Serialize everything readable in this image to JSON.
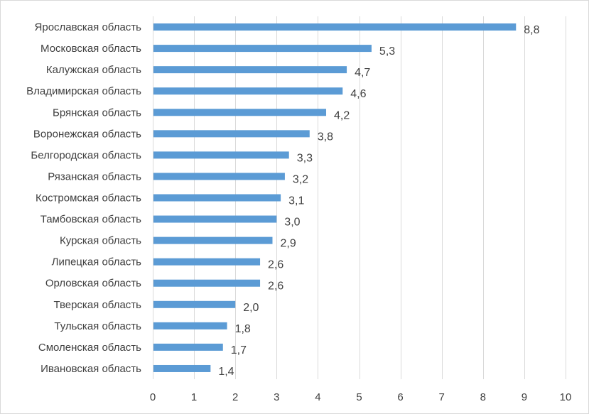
{
  "chart_data": {
    "type": "bar",
    "orientation": "horizontal",
    "categories": [
      "Ярославская область",
      "Московская область",
      "Калужская область",
      "Владимирская область",
      "Брянская область",
      "Воронежская область",
      "Белгородская область",
      "Рязанская область",
      "Костромская область",
      "Тамбовская область",
      "Курская область",
      "Липецкая область",
      "Орловская область",
      "Тверская область",
      "Тульская область",
      "Смоленская область",
      "Ивановская область"
    ],
    "values": [
      8.8,
      5.3,
      4.7,
      4.6,
      4.2,
      3.8,
      3.3,
      3.2,
      3.1,
      3.0,
      2.9,
      2.6,
      2.6,
      2.0,
      1.8,
      1.7,
      1.4
    ],
    "data_labels": [
      "8,8",
      "5,3",
      "4,7",
      "4,6",
      "4,2",
      "3,8",
      "3,3",
      "3,2",
      "3,1",
      "3,0",
      "2,9",
      "2,6",
      "2,6",
      "2,0",
      "1,8",
      "1,7",
      "1,4"
    ],
    "x_ticks": [
      "0",
      "1",
      "2",
      "3",
      "4",
      "5",
      "6",
      "7",
      "8",
      "9",
      "10"
    ],
    "xlim": [
      0,
      10
    ],
    "grid": true,
    "bar_color": "#5b9bd5",
    "gridline_color": "#d9d9d9",
    "text_color": "#404040"
  }
}
